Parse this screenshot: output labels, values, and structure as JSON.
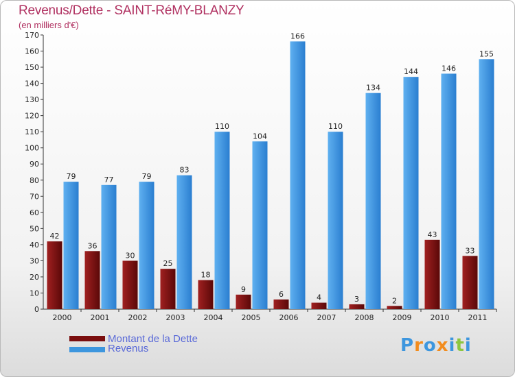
{
  "chart_data": {
    "type": "bar",
    "title": "Revenus/Dette - SAINT-RéMY-BLANZY",
    "subtitle": "(en milliers d'€)",
    "categories": [
      "2000",
      "2001",
      "2002",
      "2003",
      "2004",
      "2005",
      "2006",
      "2007",
      "2008",
      "2009",
      "2010",
      "2011"
    ],
    "series": [
      {
        "name": "Montant de la Dette",
        "color": "#7a0e0e",
        "values": [
          42,
          36,
          30,
          25,
          18,
          9,
          6,
          4,
          3,
          2,
          43,
          33
        ]
      },
      {
        "name": "Revenus",
        "color": "#3d96de",
        "values": [
          79,
          77,
          79,
          83,
          110,
          104,
          166,
          110,
          134,
          144,
          146,
          155
        ]
      }
    ],
    "ylim": [
      0,
      170
    ],
    "ytick_step": 10,
    "grid": false,
    "legend": "bottom-left"
  },
  "logo": {
    "text": "Proxiti",
    "letters": [
      "P",
      "r",
      "o",
      "x",
      "i",
      "t",
      "i"
    ],
    "colors": [
      "#3d96de",
      "#f28c1e",
      "#3d96de",
      "#f28c1e",
      "#3d96de",
      "#8cc63f",
      "#3d96de"
    ]
  }
}
